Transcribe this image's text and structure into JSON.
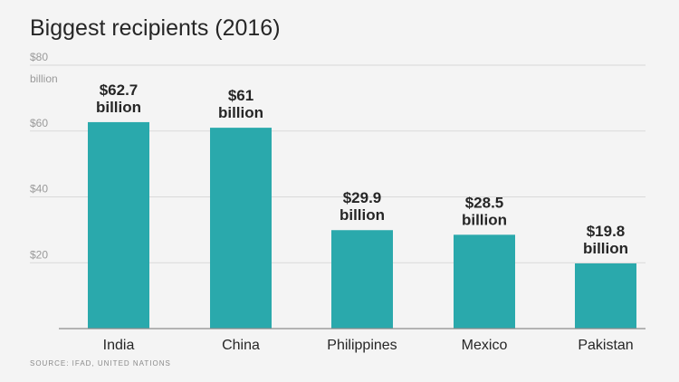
{
  "chart_data": {
    "type": "bar",
    "title": "Biggest recipients (2016)",
    "categories": [
      "India",
      "China",
      "Philippines",
      "Mexico",
      "Pakistan"
    ],
    "values": [
      62.7,
      61,
      29.9,
      28.5,
      19.8
    ],
    "data_labels": [
      [
        "$62.7",
        "billion"
      ],
      [
        "$61",
        "billion"
      ],
      [
        "$29.9",
        "billion"
      ],
      [
        "$28.5",
        "billion"
      ],
      [
        "$19.8",
        "billion"
      ]
    ],
    "ylim": [
      0,
      80
    ],
    "yticks": [
      20,
      40,
      60,
      80
    ],
    "ytick_labels": [
      "$20",
      "$40",
      "$60",
      "$80"
    ],
    "yunit_label": "billion",
    "grid": true,
    "bar_color": "#2aa9ac",
    "source": "SOURCE: IFAD, UNITED NATIONS"
  }
}
